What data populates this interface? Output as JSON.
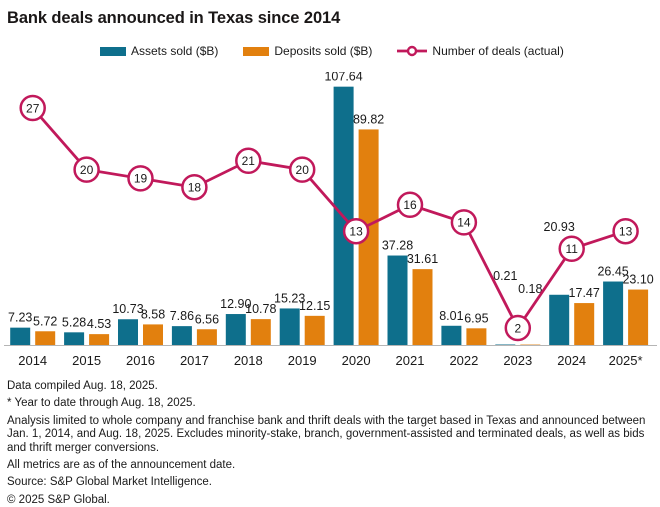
{
  "title": "Bank deals announced in Texas since 2014",
  "legend": [
    {
      "label": "Assets sold ($B)",
      "color": "#0e6f8c",
      "icon": "teal-bar-swatch"
    },
    {
      "label": "Deposits sold ($B)",
      "color": "#e2800e",
      "icon": "orange-bar-swatch"
    },
    {
      "label": "Number of deals (actual)",
      "color": "#c1195b",
      "icon": "line-circle-marker"
    }
  ],
  "chart_data": {
    "type": "bar+line",
    "title": "Bank deals announced in Texas since 2014",
    "categories": [
      "2014",
      "2015",
      "2016",
      "2017",
      "2018",
      "2019",
      "2020",
      "2021",
      "2022",
      "2023",
      "2024",
      "2025*"
    ],
    "series": [
      {
        "name": "Assets sold ($B)",
        "type": "bar",
        "color": "#0e6f8c",
        "values": [
          7.23,
          5.28,
          10.73,
          7.86,
          12.9,
          15.23,
          107.64,
          37.28,
          8.01,
          0.21,
          20.93,
          26.45
        ]
      },
      {
        "name": "Deposits sold ($B)",
        "type": "bar",
        "color": "#e2800e",
        "values": [
          5.72,
          4.53,
          8.58,
          6.56,
          10.78,
          12.15,
          89.82,
          31.61,
          6.95,
          0.18,
          17.47,
          23.1
        ]
      },
      {
        "name": "Number of deals (actual)",
        "type": "line",
        "color": "#c1195b",
        "marker": "open-circle-with-value",
        "values": [
          27,
          20,
          19,
          18,
          21,
          20,
          13,
          16,
          14,
          2,
          11,
          13
        ]
      }
    ],
    "value_labels": true,
    "grid": false,
    "y_axis_visible": false,
    "baseline_color": "#b5b5b5",
    "legend_position": "top",
    "ylim": [
      0,
      115
    ],
    "line_ylim": [
      0,
      30
    ]
  },
  "footnotes": [
    "Data compiled Aug. 18, 2025.",
    "* Year to date through Aug. 18, 2025.",
    "Analysis limited to whole company and franchise bank and thrift deals with the target based in Texas and announced between Jan. 1, 2014, and Aug. 18, 2025. Excludes minority-stake, branch, government-assisted and terminated deals, as well as bids and thrift merger conversions.",
    "All metrics are as of the announcement date.",
    "Source: S&P Global Market Intelligence.",
    "© 2025 S&P Global."
  ]
}
